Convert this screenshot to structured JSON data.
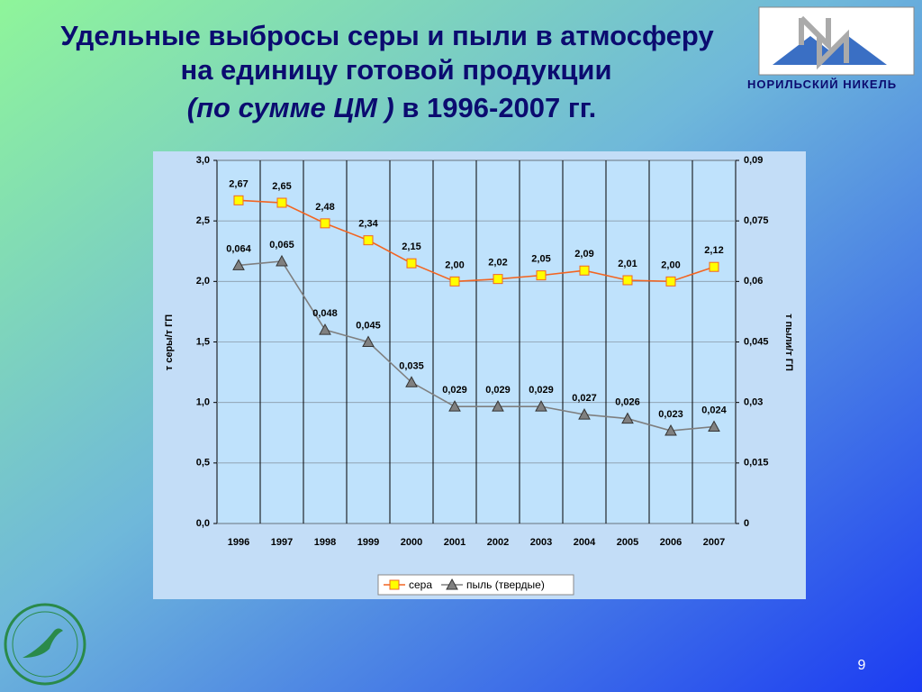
{
  "title_lines": [
    "Удельные выбросы серы и пыли в атмосферу",
    "на единицу готовой продукции"
  ],
  "title_em": "(по сумме ЦМ )",
  "title_tail": "в 1996-2007 гг.",
  "logo_text": "НОРИЛЬСКИЙ НИКЕЛЬ",
  "page_number": 9,
  "chart_data": {
    "type": "line",
    "categories": [
      "1996",
      "1997",
      "1998",
      "1999",
      "2000",
      "2001",
      "2002",
      "2003",
      "2004",
      "2005",
      "2006",
      "2007"
    ],
    "ylabel": "т серы/т ГП",
    "y2label": "т пыли/т ГП",
    "ylim": [
      0,
      3
    ],
    "yticks": [
      {
        "value": 0,
        "label": "0,0"
      },
      {
        "value": 0.5,
        "label": "0,5"
      },
      {
        "value": 1,
        "label": "1,0"
      },
      {
        "value": 1.5,
        "label": "1,5"
      },
      {
        "value": 2,
        "label": "2,0"
      },
      {
        "value": 2.5,
        "label": "2,5"
      },
      {
        "value": 3,
        "label": "3,0"
      }
    ],
    "y2lim": [
      0,
      0.09
    ],
    "y2ticks": [
      0,
      {
        "value": 0.015,
        "label": "0,015"
      },
      {
        "value": 0.03,
        "label": "0,03"
      },
      {
        "value": 0.045,
        "label": "0,045"
      },
      {
        "value": 0.06,
        "label": "0,06"
      },
      {
        "value": 0.075,
        "label": "0,075"
      },
      {
        "value": 0.09,
        "label": "0,09"
      }
    ],
    "grid": true,
    "legend": "bottom",
    "series": [
      {
        "name": "сера",
        "color": "#f26522",
        "marker": "square",
        "marker_color": "#ffff00",
        "values": [
          2.67,
          2.65,
          2.48,
          2.34,
          2.15,
          2.0,
          2.02,
          2.05,
          2.09,
          2.01,
          2.0,
          2.12
        ],
        "value_labels": [
          "2,67",
          "2,65",
          "2,48",
          "2,34",
          "2,15",
          "2,00",
          "2,02",
          "2,05",
          "2,09",
          "2,01",
          "2,00",
          "2,12"
        ]
      },
      {
        "name": "пыль (твердые)",
        "color": "#7f7f7f",
        "marker": "triangle",
        "marker_color": "#808080",
        "axis": "y2",
        "values": [
          0.064,
          0.065,
          0.048,
          0.045,
          0.035,
          0.029,
          0.029,
          0.029,
          0.027,
          0.026,
          0.023,
          0.024
        ],
        "value_labels": [
          "0,064",
          "0,065",
          "0,048",
          "0,045",
          "0,035",
          "0,029",
          "0,029",
          "0,029",
          "0,027",
          "0,026",
          "0,023",
          "0,024"
        ]
      }
    ]
  }
}
